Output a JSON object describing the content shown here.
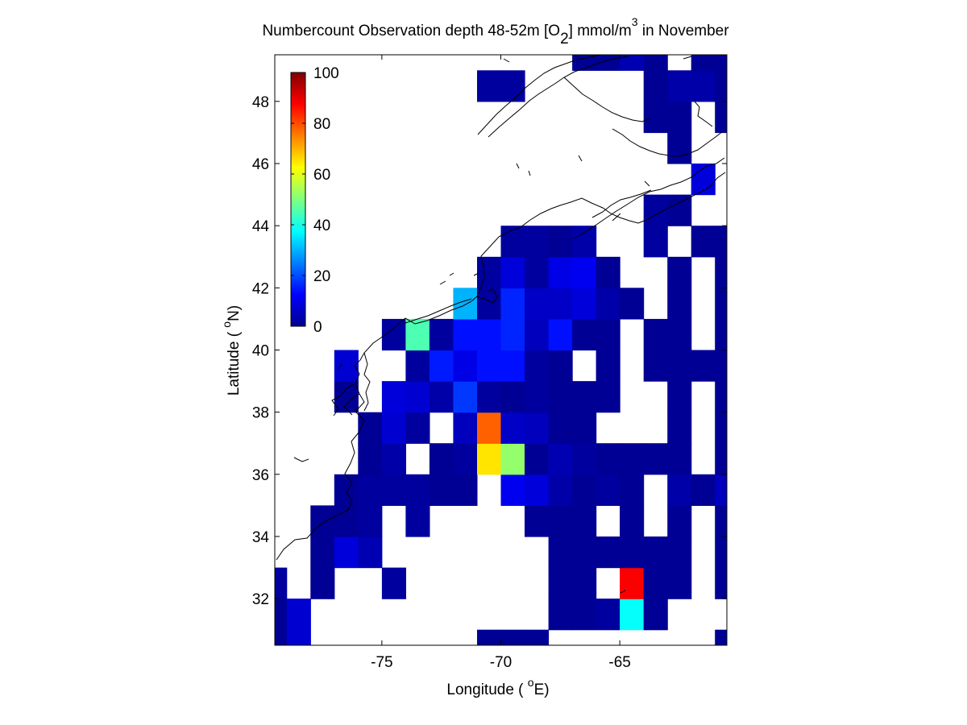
{
  "chart_data": {
    "type": "heatmap",
    "title": {
      "main": "Numbercount Observation depth 48-52m [O",
      "sub": "2",
      "mid": "] mmol/m",
      "sup": "3",
      "end": " in November"
    },
    "xlabel": {
      "pre": "Longitude ( ",
      "sup": "o",
      "post": "E)"
    },
    "ylabel": {
      "pre": "Latitude ( ",
      "sup": "o",
      "post": "N)"
    },
    "xlim": [
      -79.5,
      -60.5
    ],
    "ylim": [
      30.5,
      49.5
    ],
    "xticks": [
      -75,
      -70,
      -65
    ],
    "yticks": [
      32,
      34,
      36,
      38,
      40,
      42,
      44,
      46,
      48
    ],
    "cell_size_deg": 1,
    "colormap": "jet",
    "colorbar": {
      "min": 0,
      "max": 100,
      "ticks": [
        0,
        20,
        40,
        60,
        80,
        100
      ],
      "placement": "top-left inside axes"
    },
    "grid": false,
    "cells": [
      {
        "lon": -79.5,
        "lat": 30.5,
        "value": 2
      },
      {
        "lon": -78.5,
        "lat": 30.5,
        "value": 8
      },
      {
        "lon": -70.5,
        "lat": 30.5,
        "value": 2
      },
      {
        "lon": -69.5,
        "lat": 30.5,
        "value": 2
      },
      {
        "lon": -68.5,
        "lat": 30.5,
        "value": 2
      },
      {
        "lon": -60.5,
        "lat": 30.5,
        "value": 2
      },
      {
        "lon": -79.5,
        "lat": 31.5,
        "value": 2
      },
      {
        "lon": -78.5,
        "lat": 31.5,
        "value": 8
      },
      {
        "lon": -67.5,
        "lat": 31.5,
        "value": 2
      },
      {
        "lon": -66.5,
        "lat": 31.5,
        "value": 2
      },
      {
        "lon": -65.5,
        "lat": 31.5,
        "value": 3
      },
      {
        "lon": -64.5,
        "lat": 31.5,
        "value": 38
      },
      {
        "lon": -63.5,
        "lat": 31.5,
        "value": 2
      },
      {
        "lon": -79.5,
        "lat": 32.5,
        "value": 3
      },
      {
        "lon": -77.5,
        "lat": 32.5,
        "value": 2
      },
      {
        "lon": -74.5,
        "lat": 32.5,
        "value": 3
      },
      {
        "lon": -67.5,
        "lat": 32.5,
        "value": 2
      },
      {
        "lon": -66.5,
        "lat": 32.5,
        "value": 2
      },
      {
        "lon": -64.5,
        "lat": 32.5,
        "value": 88
      },
      {
        "lon": -63.5,
        "lat": 32.5,
        "value": 2
      },
      {
        "lon": -62.5,
        "lat": 32.5,
        "value": 2
      },
      {
        "lon": -60.5,
        "lat": 32.5,
        "value": 2
      },
      {
        "lon": -77.5,
        "lat": 33.5,
        "value": 2
      },
      {
        "lon": -76.5,
        "lat": 33.5,
        "value": 9
      },
      {
        "lon": -75.5,
        "lat": 33.5,
        "value": 5
      },
      {
        "lon": -67.5,
        "lat": 33.5,
        "value": 2
      },
      {
        "lon": -66.5,
        "lat": 33.5,
        "value": 2
      },
      {
        "lon": -65.5,
        "lat": 33.5,
        "value": 2
      },
      {
        "lon": -64.5,
        "lat": 33.5,
        "value": 2
      },
      {
        "lon": -63.5,
        "lat": 33.5,
        "value": 2
      },
      {
        "lon": -62.5,
        "lat": 33.5,
        "value": 2
      },
      {
        "lon": -60.5,
        "lat": 33.5,
        "value": 2
      },
      {
        "lon": -77.5,
        "lat": 34.5,
        "value": 2
      },
      {
        "lon": -76.5,
        "lat": 34.5,
        "value": 2
      },
      {
        "lon": -75.5,
        "lat": 34.5,
        "value": 3
      },
      {
        "lon": -73.5,
        "lat": 34.5,
        "value": 3
      },
      {
        "lon": -68.5,
        "lat": 34.5,
        "value": 2
      },
      {
        "lon": -67.5,
        "lat": 34.5,
        "value": 2
      },
      {
        "lon": -66.5,
        "lat": 34.5,
        "value": 2
      },
      {
        "lon": -64.5,
        "lat": 34.5,
        "value": 2
      },
      {
        "lon": -62.5,
        "lat": 34.5,
        "value": 2
      },
      {
        "lon": -60.5,
        "lat": 34.5,
        "value": 2
      },
      {
        "lon": -76.5,
        "lat": 35.5,
        "value": 2
      },
      {
        "lon": -75.5,
        "lat": 35.5,
        "value": 3
      },
      {
        "lon": -74.5,
        "lat": 35.5,
        "value": 3
      },
      {
        "lon": -73.5,
        "lat": 35.5,
        "value": 3
      },
      {
        "lon": -72.5,
        "lat": 35.5,
        "value": 2
      },
      {
        "lon": -71.5,
        "lat": 35.5,
        "value": 2
      },
      {
        "lon": -69.5,
        "lat": 35.5,
        "value": 11
      },
      {
        "lon": -68.5,
        "lat": 35.5,
        "value": 9
      },
      {
        "lon": -67.5,
        "lat": 35.5,
        "value": 4
      },
      {
        "lon": -66.5,
        "lat": 35.5,
        "value": 2
      },
      {
        "lon": -65.5,
        "lat": 35.5,
        "value": 3
      },
      {
        "lon": -64.5,
        "lat": 35.5,
        "value": 2
      },
      {
        "lon": -62.5,
        "lat": 35.5,
        "value": 4
      },
      {
        "lon": -61.5,
        "lat": 35.5,
        "value": 2
      },
      {
        "lon": -60.5,
        "lat": 35.5,
        "value": 6
      },
      {
        "lon": -75.5,
        "lat": 36.5,
        "value": 2
      },
      {
        "lon": -74.5,
        "lat": 36.5,
        "value": 4
      },
      {
        "lon": -72.5,
        "lat": 36.5,
        "value": 2
      },
      {
        "lon": -71.5,
        "lat": 36.5,
        "value": 3
      },
      {
        "lon": -70.5,
        "lat": 36.5,
        "value": 65
      },
      {
        "lon": -69.5,
        "lat": 36.5,
        "value": 52
      },
      {
        "lon": -68.5,
        "lat": 36.5,
        "value": 2
      },
      {
        "lon": -67.5,
        "lat": 36.5,
        "value": 5
      },
      {
        "lon": -66.5,
        "lat": 36.5,
        "value": 3
      },
      {
        "lon": -65.5,
        "lat": 36.5,
        "value": 2
      },
      {
        "lon": -64.5,
        "lat": 36.5,
        "value": 2
      },
      {
        "lon": -63.5,
        "lat": 36.5,
        "value": 2
      },
      {
        "lon": -62.5,
        "lat": 36.5,
        "value": 2
      },
      {
        "lon": -60.5,
        "lat": 36.5,
        "value": 2
      },
      {
        "lon": -75.5,
        "lat": 37.5,
        "value": 2
      },
      {
        "lon": -74.5,
        "lat": 37.5,
        "value": 8
      },
      {
        "lon": -73.5,
        "lat": 37.5,
        "value": 3
      },
      {
        "lon": -71.5,
        "lat": 37.5,
        "value": 6
      },
      {
        "lon": -70.5,
        "lat": 37.5,
        "value": 78
      },
      {
        "lon": -69.5,
        "lat": 37.5,
        "value": 7
      },
      {
        "lon": -68.5,
        "lat": 37.5,
        "value": 6
      },
      {
        "lon": -67.5,
        "lat": 37.5,
        "value": 2
      },
      {
        "lon": -66.5,
        "lat": 37.5,
        "value": 2
      },
      {
        "lon": -62.5,
        "lat": 37.5,
        "value": 2
      },
      {
        "lon": -60.5,
        "lat": 37.5,
        "value": 2
      },
      {
        "lon": -76.5,
        "lat": 38.5,
        "value": 2
      },
      {
        "lon": -74.5,
        "lat": 38.5,
        "value": 9
      },
      {
        "lon": -73.5,
        "lat": 38.5,
        "value": 8
      },
      {
        "lon": -72.5,
        "lat": 38.5,
        "value": 4
      },
      {
        "lon": -71.5,
        "lat": 38.5,
        "value": 18
      },
      {
        "lon": -70.5,
        "lat": 38.5,
        "value": 3
      },
      {
        "lon": -69.5,
        "lat": 38.5,
        "value": 2
      },
      {
        "lon": -68.5,
        "lat": 38.5,
        "value": 3
      },
      {
        "lon": -67.5,
        "lat": 38.5,
        "value": 2
      },
      {
        "lon": -66.5,
        "lat": 38.5,
        "value": 2
      },
      {
        "lon": -65.5,
        "lat": 38.5,
        "value": 2
      },
      {
        "lon": -62.5,
        "lat": 38.5,
        "value": 2
      },
      {
        "lon": -60.5,
        "lat": 38.5,
        "value": 2
      },
      {
        "lon": -76.5,
        "lat": 39.5,
        "value": 8
      },
      {
        "lon": -73.5,
        "lat": 39.5,
        "value": 3
      },
      {
        "lon": -72.5,
        "lat": 39.5,
        "value": 15
      },
      {
        "lon": -71.5,
        "lat": 39.5,
        "value": 10
      },
      {
        "lon": -70.5,
        "lat": 39.5,
        "value": 14
      },
      {
        "lon": -69.5,
        "lat": 39.5,
        "value": 14
      },
      {
        "lon": -68.5,
        "lat": 39.5,
        "value": 3
      },
      {
        "lon": -67.5,
        "lat": 39.5,
        "value": 2
      },
      {
        "lon": -65.5,
        "lat": 39.5,
        "value": 2
      },
      {
        "lon": -63.5,
        "lat": 39.5,
        "value": 2
      },
      {
        "lon": -62.5,
        "lat": 39.5,
        "value": 2
      },
      {
        "lon": -61.5,
        "lat": 39.5,
        "value": 2
      },
      {
        "lon": -60.5,
        "lat": 39.5,
        "value": 2
      },
      {
        "lon": -74.5,
        "lat": 40.5,
        "value": 3
      },
      {
        "lon": -73.5,
        "lat": 40.5,
        "value": 45
      },
      {
        "lon": -72.5,
        "lat": 40.5,
        "value": 3
      },
      {
        "lon": -71.5,
        "lat": 40.5,
        "value": 14
      },
      {
        "lon": -70.5,
        "lat": 40.5,
        "value": 14
      },
      {
        "lon": -69.5,
        "lat": 40.5,
        "value": 16
      },
      {
        "lon": -68.5,
        "lat": 40.5,
        "value": 6
      },
      {
        "lon": -67.5,
        "lat": 40.5,
        "value": 14
      },
      {
        "lon": -66.5,
        "lat": 40.5,
        "value": 2
      },
      {
        "lon": -65.5,
        "lat": 40.5,
        "value": 2
      },
      {
        "lon": -63.5,
        "lat": 40.5,
        "value": 2
      },
      {
        "lon": -62.5,
        "lat": 40.5,
        "value": 2
      },
      {
        "lon": -60.5,
        "lat": 40.5,
        "value": 2
      },
      {
        "lon": -71.5,
        "lat": 41.5,
        "value": 30
      },
      {
        "lon": -70.5,
        "lat": 41.5,
        "value": 3
      },
      {
        "lon": -69.5,
        "lat": 41.5,
        "value": 16
      },
      {
        "lon": -68.5,
        "lat": 41.5,
        "value": 7
      },
      {
        "lon": -67.5,
        "lat": 41.5,
        "value": 7
      },
      {
        "lon": -66.5,
        "lat": 41.5,
        "value": 9
      },
      {
        "lon": -65.5,
        "lat": 41.5,
        "value": 4
      },
      {
        "lon": -64.5,
        "lat": 41.5,
        "value": 2
      },
      {
        "lon": -62.5,
        "lat": 41.5,
        "value": 2
      },
      {
        "lon": -60.5,
        "lat": 41.5,
        "value": 2
      },
      {
        "lon": -70.5,
        "lat": 42.5,
        "value": 3
      },
      {
        "lon": -69.5,
        "lat": 42.5,
        "value": 9
      },
      {
        "lon": -68.5,
        "lat": 42.5,
        "value": 3
      },
      {
        "lon": -67.5,
        "lat": 42.5,
        "value": 10
      },
      {
        "lon": -66.5,
        "lat": 42.5,
        "value": 11
      },
      {
        "lon": -65.5,
        "lat": 42.5,
        "value": 2
      },
      {
        "lon": -62.5,
        "lat": 42.5,
        "value": 2
      },
      {
        "lon": -60.5,
        "lat": 42.5,
        "value": 2
      },
      {
        "lon": -69.5,
        "lat": 43.5,
        "value": 3
      },
      {
        "lon": -68.5,
        "lat": 43.5,
        "value": 3
      },
      {
        "lon": -67.5,
        "lat": 43.5,
        "value": 2
      },
      {
        "lon": -66.5,
        "lat": 43.5,
        "value": 4
      },
      {
        "lon": -63.5,
        "lat": 43.5,
        "value": 3
      },
      {
        "lon": -61.5,
        "lat": 43.5,
        "value": 2
      },
      {
        "lon": -60.5,
        "lat": 43.5,
        "value": 2
      },
      {
        "lon": -63.5,
        "lat": 44.5,
        "value": 3
      },
      {
        "lon": -62.5,
        "lat": 44.5,
        "value": 2
      },
      {
        "lon": -61.5,
        "lat": 45.5,
        "value": 9
      },
      {
        "lon": -62.5,
        "lat": 46.5,
        "value": 2
      },
      {
        "lon": -63.5,
        "lat": 47.5,
        "value": 2
      },
      {
        "lon": -62.5,
        "lat": 47.5,
        "value": 2
      },
      {
        "lon": -60.5,
        "lat": 47.5,
        "value": 2
      },
      {
        "lon": -70.5,
        "lat": 48.5,
        "value": 3
      },
      {
        "lon": -69.5,
        "lat": 48.5,
        "value": 3
      },
      {
        "lon": -63.5,
        "lat": 48.5,
        "value": 2
      },
      {
        "lon": -62.5,
        "lat": 48.5,
        "value": 4
      },
      {
        "lon": -61.5,
        "lat": 48.5,
        "value": 4
      },
      {
        "lon": -60.5,
        "lat": 48.5,
        "value": 2
      },
      {
        "lon": -66.5,
        "lat": 49.5,
        "value": 2
      },
      {
        "lon": -65.5,
        "lat": 49.5,
        "value": 2
      },
      {
        "lon": -64.5,
        "lat": 49.5,
        "value": 5
      },
      {
        "lon": -63.5,
        "lat": 49.5,
        "value": 2
      },
      {
        "lon": -61.5,
        "lat": 49.5,
        "value": 2
      },
      {
        "lon": -60.5,
        "lat": 49.5,
        "value": 2
      }
    ],
    "coastline_color": "#000000"
  }
}
